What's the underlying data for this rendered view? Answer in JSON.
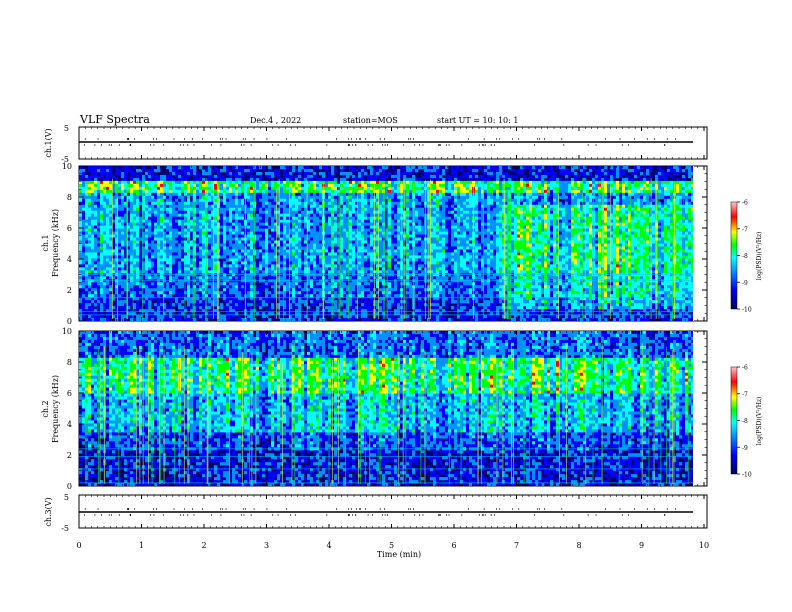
{
  "header": {
    "title": "VLF Spectra",
    "date": "Dec.4 , 2022",
    "station": "station=MOS",
    "start": "start  UT =   10: 10: 1"
  },
  "chart_data": [
    {
      "type": "line",
      "panel": "ch1-waveform",
      "ylabel": "ch.1(V)",
      "ylim": [
        -5,
        5
      ],
      "yticks": [
        "5",
        "-5"
      ],
      "series": [
        {
          "values_summary": "flat near 0 V",
          "level": -0.8
        }
      ]
    },
    {
      "type": "heatmap",
      "panel": "ch1-spectrogram",
      "ylabel_top": "ch.1",
      "ylabel": "Frequency (kHz)",
      "ylim": [
        0,
        10
      ],
      "yticks": [
        "0",
        "2",
        "4",
        "6",
        "8",
        "10"
      ],
      "xlim": [
        0,
        10
      ],
      "note": "broadband emission; enhanced lower-band activity after ~7 min",
      "colorbar": {
        "label": "log(PSD)(V²/Hz)",
        "ticks": [
          "-6",
          "-7",
          "-8",
          "-9",
          "-10"
        ],
        "range": [
          -10,
          -6
        ]
      }
    },
    {
      "type": "heatmap",
      "panel": "ch2-spectrogram",
      "ylabel_top": "ch.2",
      "ylabel": "Frequency (kHz)",
      "ylim": [
        0,
        10
      ],
      "yticks": [
        "0",
        "2",
        "4",
        "6",
        "8",
        "10"
      ],
      "xlim": [
        0,
        10
      ],
      "note": "strong band near 6-8 kHz throughout",
      "colorbar": {
        "label": "log(PSD)(V²/Hz)",
        "ticks": [
          "-6",
          "-7",
          "-8",
          "-9",
          "-10"
        ],
        "range": [
          -10,
          -6
        ]
      }
    },
    {
      "type": "line",
      "panel": "ch3-waveform",
      "ylabel": "ch.3(V)",
      "ylim": [
        -5,
        5
      ],
      "yticks": [
        "5",
        "-5"
      ],
      "series": [
        {
          "values_summary": "flat near 0 V",
          "level": -0.8
        }
      ]
    }
  ],
  "xaxis": {
    "label": "Time  (min)",
    "ticks": [
      "0",
      "1",
      "2",
      "3",
      "4",
      "5",
      "6",
      "7",
      "8",
      "9",
      "10"
    ],
    "range": [
      0,
      10
    ]
  },
  "colormap": [
    "#00007a",
    "#0000ff",
    "#0090ff",
    "#00ffff",
    "#00ff00",
    "#ffff00",
    "#ff0000",
    "#ffb0c0"
  ]
}
